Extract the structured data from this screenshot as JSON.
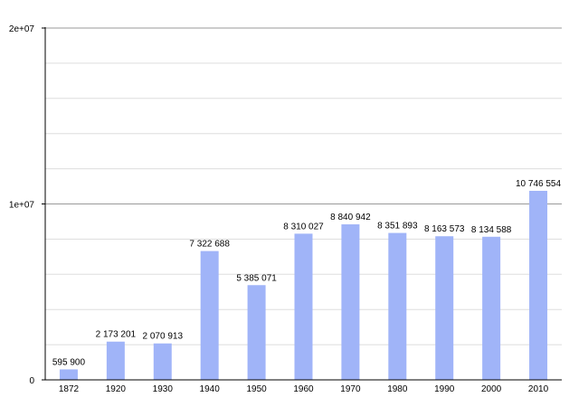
{
  "chart_data": {
    "type": "bar",
    "categories": [
      "1872",
      "1920",
      "1930",
      "1940",
      "1950",
      "1960",
      "1970",
      "1980",
      "1990",
      "2000",
      "2010"
    ],
    "values": [
      595900,
      2173201,
      2070913,
      7322688,
      5385071,
      8310027,
      8840942,
      8351893,
      8163573,
      8134588,
      10746554
    ],
    "data_labels": [
      "595 900",
      "2 173 201",
      "2 070 913",
      "7 322 688",
      "5 385 071",
      "8 310 027",
      "8 840 942",
      "8 351 893",
      "8 163 573",
      "8 134 588",
      "10 746 554"
    ],
    "ylim": [
      0,
      20000000
    ],
    "yticks": [
      {
        "value": 0,
        "label": "0"
      },
      {
        "value": 10000000,
        "label": "1e+07"
      },
      {
        "value": 20000000,
        "label": "2e+07"
      }
    ],
    "minor_grid_step": 2000000,
    "grid": true,
    "title": "",
    "xlabel": "",
    "ylabel": "",
    "colors": {
      "bar": "#a0b4f8",
      "major_grid": "#9a9a9a",
      "minor_grid": "#dddddd",
      "axis": "#000000"
    }
  }
}
